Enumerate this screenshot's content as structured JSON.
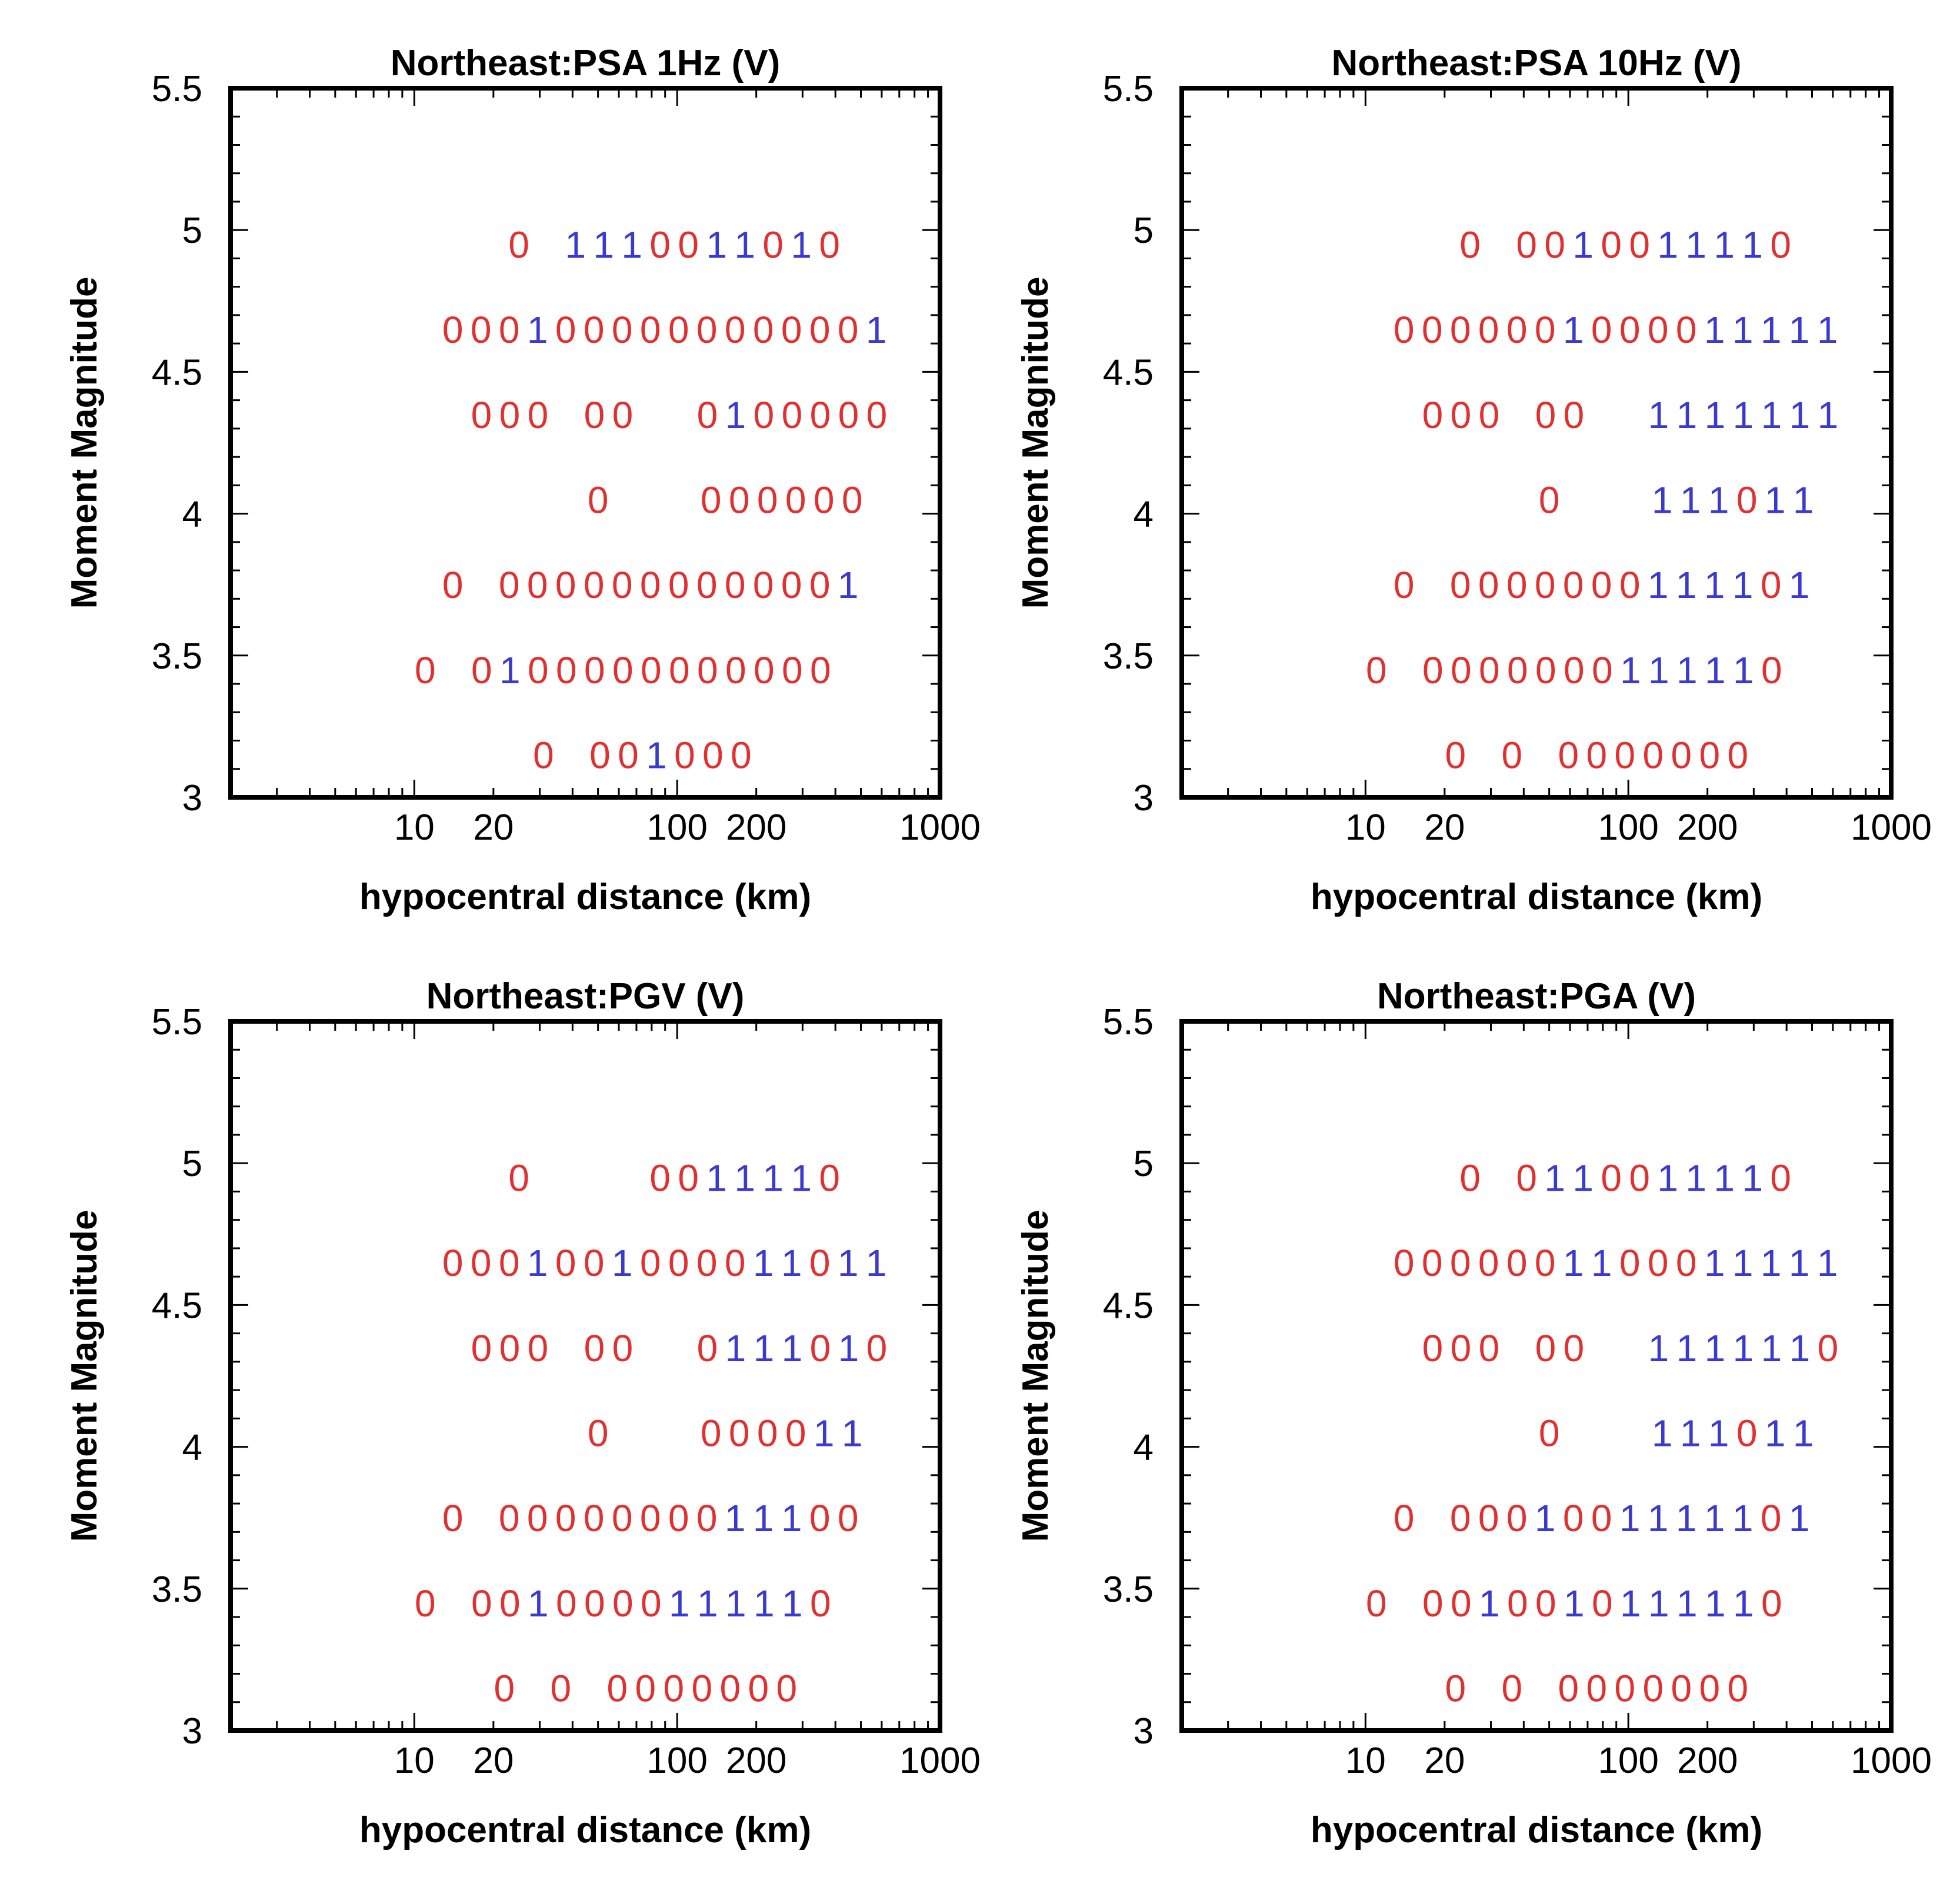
{
  "colors": {
    "zero": "#e03030",
    "one": "#3a3ad0",
    "frame": "#000000"
  },
  "chart_data": [
    {
      "type": "scatter",
      "title": "Northeast:PSA 1Hz (V)",
      "xlabel": "hypocentral distance (km)",
      "ylabel": "Moment Magnitude",
      "xscale": "log",
      "xlim": [
        2,
        1000
      ],
      "ylim": [
        3,
        5.5
      ],
      "xticks": [
        "10",
        "20",
        "100",
        "200",
        "1000"
      ],
      "yticks": [
        "3",
        "3.5",
        "4",
        "4.5",
        "5",
        "5.5"
      ],
      "rows": [
        {
          "magnitude": 4.95,
          "marks": "0 1110011010",
          "first_distance_km": 25
        },
        {
          "magnitude": 4.65,
          "marks": "0001000000000001",
          "first_distance_km": 14
        },
        {
          "magnitude": 4.35,
          "marks": "000 00  0100000",
          "first_distance_km": 18
        },
        {
          "magnitude": 4.05,
          "marks": "0   000000",
          "first_distance_km": 50
        },
        {
          "magnitude": 3.75,
          "marks": "0 0000000000001",
          "first_distance_km": 14
        },
        {
          "magnitude": 3.45,
          "marks": "0 0100000000000",
          "first_distance_km": 11
        },
        {
          "magnitude": 3.15,
          "marks": "0 001000",
          "first_distance_km": 31
        }
      ]
    },
    {
      "type": "scatter",
      "title": "Northeast:PSA 10Hz (V)",
      "xlabel": "hypocentral distance (km)",
      "ylabel": "Moment Magnitude",
      "xscale": "log",
      "xlim": [
        2,
        1000
      ],
      "ylim": [
        3,
        5.5
      ],
      "xticks": [
        "10",
        "20",
        "100",
        "200",
        "1000"
      ],
      "yticks": [
        "3",
        "3.5",
        "4",
        "4.5",
        "5",
        "5.5"
      ],
      "rows": [
        {
          "magnitude": 4.95,
          "marks": "0 0010011110",
          "first_distance_km": 25
        },
        {
          "magnitude": 4.65,
          "marks": "0000001000011111",
          "first_distance_km": 14
        },
        {
          "magnitude": 4.35,
          "marks": "000 00  1111111",
          "first_distance_km": 18
        },
        {
          "magnitude": 4.05,
          "marks": "0   111011",
          "first_distance_km": 50
        },
        {
          "magnitude": 3.75,
          "marks": "0 0000000111101",
          "first_distance_km": 14
        },
        {
          "magnitude": 3.45,
          "marks": "0 0000000111110",
          "first_distance_km": 11
        },
        {
          "magnitude": 3.15,
          "marks": "0 0 0000000",
          "first_distance_km": 22
        }
      ]
    },
    {
      "type": "scatter",
      "title": "Northeast:PGV (V)",
      "xlabel": "hypocentral distance (km)",
      "ylabel": "Moment Magnitude",
      "xscale": "log",
      "xlim": [
        2,
        1000
      ],
      "ylim": [
        3,
        5.5
      ],
      "xticks": [
        "10",
        "20",
        "100",
        "200",
        "1000"
      ],
      "yticks": [
        "3",
        "3.5",
        "4",
        "4.5",
        "5",
        "5.5"
      ],
      "rows": [
        {
          "magnitude": 4.95,
          "marks": "0    0011110",
          "first_distance_km": 25
        },
        {
          "magnitude": 4.65,
          "marks": "0001001000011011",
          "first_distance_km": 14
        },
        {
          "magnitude": 4.35,
          "marks": "000 00  0111010",
          "first_distance_km": 18
        },
        {
          "magnitude": 4.05,
          "marks": "0   000011",
          "first_distance_km": 50
        },
        {
          "magnitude": 3.75,
          "marks": "0 0000000011100",
          "first_distance_km": 14
        },
        {
          "magnitude": 3.45,
          "marks": "0 0010000111110",
          "first_distance_km": 11
        },
        {
          "magnitude": 3.15,
          "marks": "0 0 0000000",
          "first_distance_km": 22
        }
      ]
    },
    {
      "type": "scatter",
      "title": "Northeast:PGA (V)",
      "xlabel": "hypocentral distance (km)",
      "ylabel": "Moment Magnitude",
      "xscale": "log",
      "xlim": [
        2,
        1000
      ],
      "ylim": [
        3,
        5.5
      ],
      "xticks": [
        "10",
        "20",
        "100",
        "200",
        "1000"
      ],
      "yticks": [
        "3",
        "3.5",
        "4",
        "4.5",
        "5",
        "5.5"
      ],
      "rows": [
        {
          "magnitude": 4.95,
          "marks": "0 0110011110",
          "first_distance_km": 25
        },
        {
          "magnitude": 4.65,
          "marks": "0000001100011111",
          "first_distance_km": 14
        },
        {
          "magnitude": 4.35,
          "marks": "000 00  1111110",
          "first_distance_km": 18
        },
        {
          "magnitude": 4.05,
          "marks": "0   111011",
          "first_distance_km": 50
        },
        {
          "magnitude": 3.75,
          "marks": "0 0001001111101",
          "first_distance_km": 14
        },
        {
          "magnitude": 3.45,
          "marks": "0 0010010111110",
          "first_distance_km": 11
        },
        {
          "magnitude": 3.15,
          "marks": "0 0 0000000",
          "first_distance_km": 22
        }
      ]
    }
  ]
}
